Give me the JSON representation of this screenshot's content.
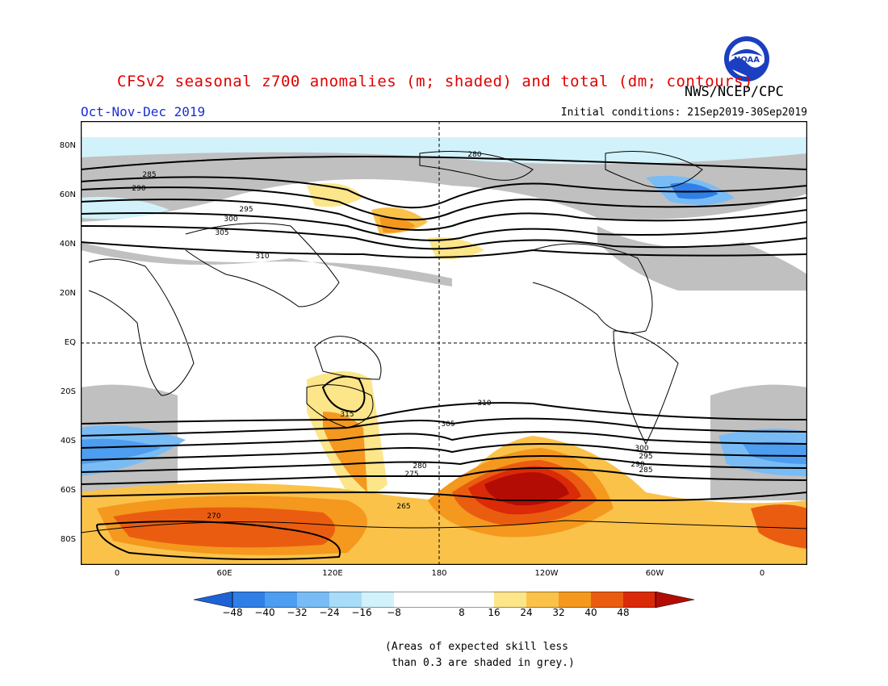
{
  "header": {
    "title": "CFSv2 seasonal z700 anomalies (m; shaded) and total (dm; contours)",
    "agency": "NWS/NCEP/CPC",
    "period": "Oct-Nov-Dec 2019",
    "initial_conditions": "Initial conditions: 21Sep2019-30Sep2019",
    "logo_text": "NOAA"
  },
  "map": {
    "lat_labels": [
      "80N",
      "60N",
      "40N",
      "20N",
      "EQ",
      "20S",
      "40S",
      "60S",
      "80S"
    ],
    "lon_labels": [
      "0",
      "60E",
      "120E",
      "180",
      "120W",
      "60W",
      "0"
    ],
    "contour_labels": [
      "280",
      "285",
      "290",
      "295",
      "300",
      "305",
      "310",
      "315",
      "270",
      "265",
      "275",
      "280",
      "285",
      "290",
      "295",
      "300",
      "305",
      "310"
    ],
    "colors": {
      "skill_grey": "#c0c0c0",
      "land_outline": "#000000",
      "contour": "#000000"
    }
  },
  "colorbar": {
    "ticks": [
      "−48",
      "−40",
      "−32",
      "−24",
      "−16",
      "−8",
      "8",
      "16",
      "24",
      "32",
      "40",
      "48"
    ],
    "colors": [
      "#1e63d6",
      "#2f7fe6",
      "#4d9df0",
      "#79bcf5",
      "#a8dcf8",
      "#d2f2fb",
      "#ffffff",
      "#fde58a",
      "#fbc24a",
      "#f4981e",
      "#ea5d10",
      "#da2a08",
      "#b30c05"
    ]
  },
  "footnote": {
    "line1": "(Areas of expected skill less",
    "line2": " than 0.3 are shaded in grey.)"
  }
}
